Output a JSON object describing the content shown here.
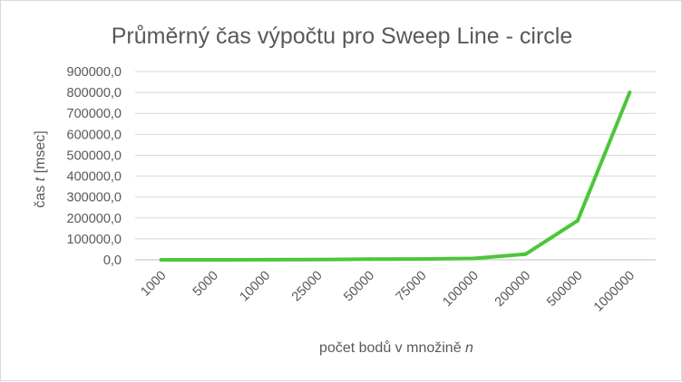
{
  "chart_data": {
    "type": "line",
    "title": "Průměrný čas výpočtu pro Sweep Line - circle",
    "xlabel_text": "počet bodů v množině ",
    "xlabel_var": "n",
    "ylabel_text": "čas ",
    "ylabel_var": "t",
    "ylabel_unit": " [msec]",
    "categories": [
      "1000",
      "5000",
      "10000",
      "25000",
      "50000",
      "75000",
      "100000",
      "200000",
      "500000",
      "1000000"
    ],
    "values": [
      30,
      200,
      500,
      1500,
      3000,
      4000,
      6500,
      27000,
      187000,
      800000
    ],
    "ylim": [
      0,
      900000
    ],
    "y_ticks": [
      0,
      100000,
      200000,
      300000,
      400000,
      500000,
      600000,
      700000,
      800000,
      900000
    ],
    "y_tick_labels": [
      "0,0",
      "100000,0",
      "200000,0",
      "300000,0",
      "400000,0",
      "500000,0",
      "600000,0",
      "700000,0",
      "800000,0",
      "900000,0"
    ],
    "grid": true,
    "legend": "none",
    "series_color": "#4cc63a"
  }
}
